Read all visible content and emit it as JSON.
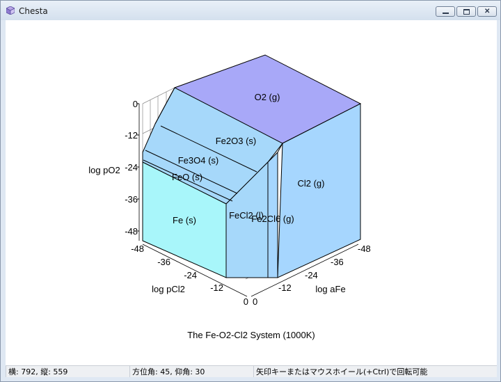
{
  "window": {
    "title": "Chesta",
    "icon": "cube-app-icon",
    "controls": [
      "minimize",
      "maximize",
      "close"
    ]
  },
  "plot": {
    "title": "The Fe-O2-Cl2 System (1000K)",
    "axes": {
      "vertical": {
        "label": "log pO2",
        "ticks": [
          "0",
          "-12",
          "-24",
          "-36",
          "-48"
        ]
      },
      "left": {
        "label": "log pCl2",
        "ticks": [
          "-48",
          "-36",
          "-24",
          "-12",
          "0"
        ]
      },
      "right": {
        "label": "log aFe",
        "ticks": [
          "-48",
          "-36",
          "-24",
          "-12",
          "0"
        ]
      }
    },
    "regions": {
      "o2": "O2 (g)",
      "fe2o3": "Fe2O3 (s)",
      "fe3o4": "Fe3O4 (s)",
      "feo": "FeO (s)",
      "fe": "Fe (s)",
      "fecl2": "FeCl2 (l)",
      "fe2cl6": "Fe2Cl6 (g)",
      "cl2": "Cl2 (g)"
    },
    "colors": {
      "top": "#a8a8f8",
      "upper": "#a6d8fa",
      "lower": "#a8f6fa",
      "right": "#a6d6fe"
    },
    "view": {
      "azimuth": 45,
      "elevation": 30
    }
  },
  "statusbar": {
    "coords": "横: 792, 縦: 559",
    "angles": "方位角: 45, 仰角: 30",
    "hint": "矢印キーまたはマウスホイール(+Ctrl)で回転可能"
  }
}
